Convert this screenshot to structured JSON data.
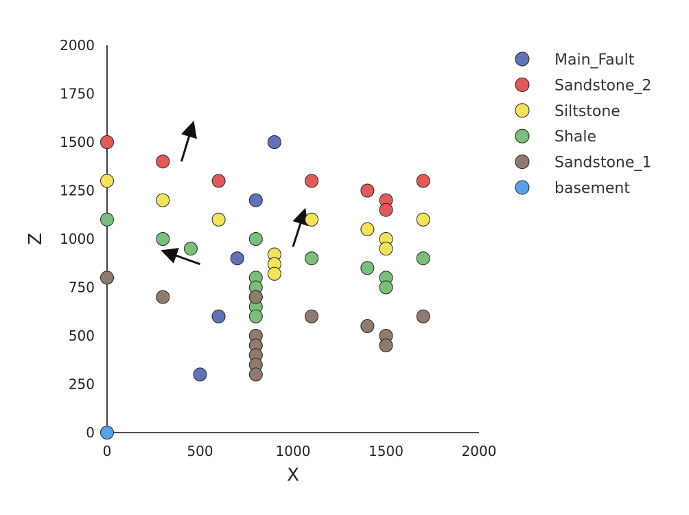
{
  "chart_data": {
    "type": "scatter",
    "xlabel": "X",
    "ylabel": "Z",
    "xlim": [
      0,
      2000
    ],
    "ylim": [
      0,
      2000
    ],
    "xticks": [
      "0",
      "500",
      "1000",
      "1500",
      "2000"
    ],
    "yticks": [
      "0",
      "250",
      "500",
      "750",
      "1000",
      "1250",
      "1500",
      "1750",
      "2000"
    ],
    "grid": false,
    "legend_position": "right",
    "series": [
      {
        "name": "Main_Fault",
        "color": "#6271b8",
        "points": [
          [
            500,
            300
          ],
          [
            600,
            600
          ],
          [
            700,
            900
          ],
          [
            800,
            1200
          ],
          [
            900,
            1500
          ]
        ]
      },
      {
        "name": "Sandstone_2",
        "color": "#e15a5a",
        "points": [
          [
            0,
            1500
          ],
          [
            300,
            1400
          ],
          [
            600,
            1300
          ],
          [
            1100,
            1300
          ],
          [
            1400,
            1250
          ],
          [
            1500,
            1200
          ],
          [
            1500,
            1150
          ],
          [
            1700,
            1300
          ]
        ]
      },
      {
        "name": "Siltstone",
        "color": "#f2e35a",
        "points": [
          [
            0,
            1300
          ],
          [
            300,
            1200
          ],
          [
            600,
            1100
          ],
          [
            900,
            920
          ],
          [
            900,
            870
          ],
          [
            900,
            820
          ],
          [
            1100,
            1100
          ],
          [
            1400,
            1050
          ],
          [
            1500,
            1000
          ],
          [
            1500,
            950
          ],
          [
            1700,
            1100
          ]
        ]
      },
      {
        "name": "Shale",
        "color": "#7bbd7b",
        "points": [
          [
            0,
            1100
          ],
          [
            300,
            1000
          ],
          [
            450,
            950
          ],
          [
            800,
            1000
          ],
          [
            800,
            800
          ],
          [
            800,
            750
          ],
          [
            800,
            700
          ],
          [
            800,
            650
          ],
          [
            800,
            600
          ],
          [
            1100,
            900
          ],
          [
            1400,
            850
          ],
          [
            1500,
            800
          ],
          [
            1500,
            750
          ],
          [
            1700,
            900
          ]
        ]
      },
      {
        "name": "Sandstone_1",
        "color": "#8f7a6e",
        "points": [
          [
            0,
            800
          ],
          [
            300,
            700
          ],
          [
            800,
            700
          ],
          [
            800,
            500
          ],
          [
            800,
            450
          ],
          [
            800,
            400
          ],
          [
            800,
            350
          ],
          [
            800,
            300
          ],
          [
            1100,
            600
          ],
          [
            1400,
            550
          ],
          [
            1500,
            500
          ],
          [
            1500,
            450
          ],
          [
            1700,
            600
          ]
        ]
      },
      {
        "name": "basement",
        "color": "#5aa0e6",
        "points": [
          [
            0,
            0
          ]
        ]
      }
    ],
    "arrows": [
      {
        "from": [
          400,
          1400
        ],
        "to": [
          460,
          1590
        ]
      },
      {
        "from": [
          500,
          870
        ],
        "to": [
          310,
          935
        ]
      },
      {
        "from": [
          1000,
          960
        ],
        "to": [
          1060,
          1140
        ]
      }
    ]
  }
}
